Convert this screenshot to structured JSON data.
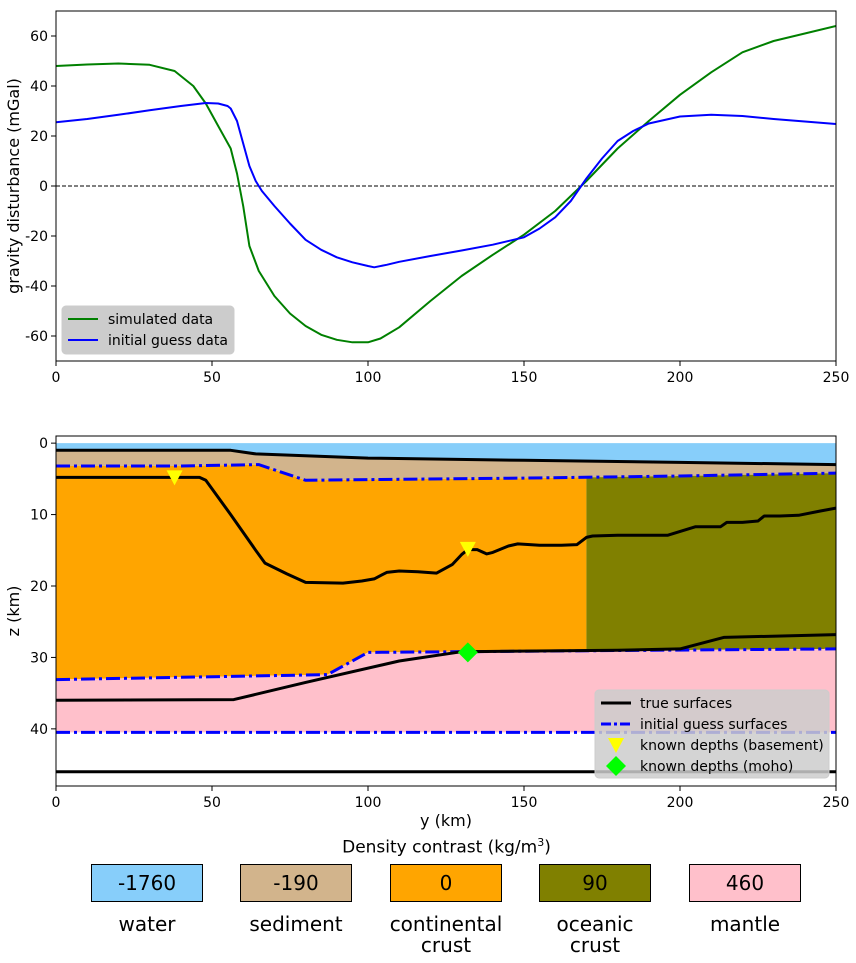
{
  "chart_data": [
    {
      "type": "line",
      "title": "",
      "xlabel": "",
      "ylabel": "gravity disturbance (mGal)",
      "xlim": [
        0,
        250
      ],
      "ylim": [
        -70,
        70
      ],
      "xticks": [
        0,
        50,
        100,
        150,
        200,
        250
      ],
      "yticks": [
        60,
        40,
        20,
        0,
        -20,
        -40,
        -60
      ],
      "zero_line": {
        "y": 0,
        "style": "dashed",
        "color": "#000000"
      },
      "legend_position": "lower-left",
      "series": [
        {
          "name": "simulated data",
          "color": "#008000",
          "x": [
            0,
            10,
            20,
            30,
            38,
            44,
            48,
            52,
            56,
            58,
            60,
            62,
            65,
            70,
            75,
            80,
            85,
            90,
            95,
            100,
            104,
            110,
            120,
            130,
            140,
            150,
            160,
            170,
            180,
            190,
            200,
            210,
            220,
            230,
            240,
            250
          ],
          "y": [
            48,
            48.6,
            49,
            48.5,
            46,
            40,
            33,
            24,
            15,
            5,
            -8,
            -24,
            -34,
            -44,
            -51,
            -56,
            -59.5,
            -61.5,
            -62.5,
            -62.5,
            -61,
            -56.5,
            -46,
            -36,
            -27.5,
            -19.5,
            -10,
            2,
            15,
            26,
            36.5,
            45.5,
            53.5,
            58,
            61,
            64
          ]
        },
        {
          "name": "initial guess data",
          "color": "#0000ff",
          "x": [
            0,
            10,
            20,
            30,
            40,
            48,
            52,
            55,
            56,
            58,
            60,
            62,
            64,
            66,
            70,
            75,
            80,
            85,
            90,
            95,
            100,
            102,
            106,
            110,
            120,
            130,
            140,
            150,
            155,
            160,
            165,
            170,
            175,
            180,
            185,
            190,
            200,
            210,
            220,
            230,
            240,
            250
          ],
          "y": [
            25.5,
            26.8,
            28.5,
            30.3,
            32,
            33.2,
            33,
            32,
            31,
            26,
            17,
            8,
            2,
            -2,
            -8,
            -15,
            -21.5,
            -25.5,
            -28.5,
            -30.5,
            -32,
            -32.5,
            -31.5,
            -30.3,
            -28,
            -25.8,
            -23.5,
            -20.5,
            -17,
            -12.5,
            -6,
            3,
            11,
            18,
            22,
            25,
            27.8,
            28.5,
            28,
            26.8,
            25.8,
            24.8
          ]
        }
      ]
    },
    {
      "type": "area",
      "title": "",
      "xlabel": "y (km)",
      "ylabel": "z (km)",
      "xlim": [
        0,
        250
      ],
      "ylim": [
        48,
        -1
      ],
      "y_axis_inverted": true,
      "xticks": [
        0,
        50,
        100,
        150,
        200,
        250
      ],
      "yticks": [
        0,
        10,
        20,
        30,
        40
      ],
      "legend_position": "lower-right",
      "layers": [
        {
          "name": "water",
          "color": "#87cefa"
        },
        {
          "name": "sediment",
          "color": "#d2b48c"
        },
        {
          "name": "continental crust",
          "color": "#ffa500"
        },
        {
          "name": "oceanic crust",
          "color": "#808000"
        },
        {
          "name": "mantle",
          "color": "#ffc0cb"
        }
      ],
      "continent_ocean_boundary_km": 170,
      "true_surfaces": {
        "color": "#000000",
        "seafloor": {
          "x": [
            0,
            56,
            64,
            100,
            150,
            200,
            250
          ],
          "y": [
            1.0,
            1.0,
            1.5,
            2.1,
            2.4,
            2.7,
            3.0
          ]
        },
        "basement": {
          "x": [
            0,
            46,
            48,
            56,
            64,
            67,
            74,
            80,
            92,
            98,
            102,
            106,
            110,
            116,
            122,
            127,
            130,
            132,
            135,
            138,
            140,
            145,
            148,
            155,
            162,
            167,
            170,
            172,
            180,
            196,
            205,
            213,
            215,
            220,
            225,
            227,
            232,
            238,
            245,
            250
          ],
          "y": [
            4.8,
            4.8,
            5.2,
            10,
            15,
            16.8,
            18.3,
            19.5,
            19.6,
            19.3,
            19.0,
            18.1,
            17.9,
            18.0,
            18.2,
            17.0,
            15.6,
            14.9,
            14.9,
            15.5,
            15.3,
            14.4,
            14.1,
            14.3,
            14.3,
            14.2,
            13.2,
            13.0,
            12.9,
            12.9,
            11.7,
            11.7,
            11.1,
            11.1,
            10.9,
            10.2,
            10.2,
            10.1,
            9.5,
            9.1
          ]
        },
        "moho": {
          "x": [
            0,
            57,
            80,
            110,
            130,
            180,
            200,
            214,
            250
          ],
          "y": [
            36.0,
            35.9,
            33.5,
            30.5,
            29.2,
            29.0,
            28.8,
            27.2,
            26.8
          ]
        },
        "bottom": {
          "x": [
            0,
            250
          ],
          "y": [
            46.0,
            46.0
          ]
        }
      },
      "initial_guess_surfaces": {
        "color": "#0000ff",
        "basement": {
          "x": [
            0,
            40,
            65,
            80,
            100,
            150,
            200,
            250
          ],
          "y": [
            3.2,
            3.2,
            3.0,
            5.2,
            5.1,
            4.9,
            4.6,
            4.2
          ]
        },
        "moho": {
          "x": [
            0,
            87,
            100,
            250
          ],
          "y": [
            33.1,
            32.4,
            29.3,
            28.8
          ]
        },
        "bottom": {
          "x": [
            0,
            250
          ],
          "y": [
            40.5,
            40.5
          ]
        }
      },
      "known_depths_basement": {
        "color": "#ffff00",
        "points": [
          {
            "x": 38,
            "y": 4.8
          },
          {
            "x": 132,
            "y": 14.8
          }
        ]
      },
      "known_depths_moho": {
        "color": "#00ff00",
        "points": [
          {
            "x": 132,
            "y": 29.3
          }
        ]
      },
      "legend": [
        {
          "label": "true surfaces",
          "style": "solid",
          "color": "#000000"
        },
        {
          "label": "initial guess surfaces",
          "style": "dashdot",
          "color": "#0000ff"
        },
        {
          "label": "known depths (basement)",
          "marker": "triangle-down",
          "color": "#ffff00"
        },
        {
          "label": "known depths (moho)",
          "marker": "diamond",
          "color": "#00ff00"
        }
      ]
    }
  ],
  "density_key": {
    "title_text": "Density contrast (kg/m",
    "title_superscript": "3",
    "title_close": ")",
    "items": [
      {
        "value": "-1760",
        "name": "water",
        "color": "#87cefa"
      },
      {
        "value": "-190",
        "name": "sediment",
        "color": "#d2b48c"
      },
      {
        "value": "0",
        "name": "continental\ncrust",
        "color": "#ffa500"
      },
      {
        "value": "90",
        "name": "oceanic\ncrust",
        "color": "#808000"
      },
      {
        "value": "460",
        "name": "mantle",
        "color": "#ffc0cb"
      }
    ]
  }
}
